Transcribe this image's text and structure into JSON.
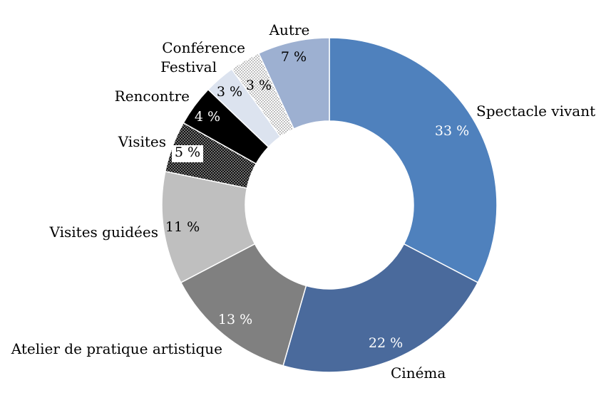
{
  "chart_data": {
    "type": "pie",
    "variant": "donut",
    "legend": "none",
    "unit_suffix": " %",
    "slices": [
      {
        "label": "Spectacle vivant",
        "value": 33,
        "color": "#4F81BD",
        "value_color": "#ffffff"
      },
      {
        "label": "Cinéma",
        "value": 22,
        "color": "#4A6A9C",
        "value_color": "#ffffff"
      },
      {
        "label": "Atelier de pratique artistique",
        "value": 13,
        "color": "#808080",
        "value_color": "#ffffff"
      },
      {
        "label": "Visites guidées",
        "value": 11,
        "color": "#BFBFBF",
        "value_color": "#000000"
      },
      {
        "label": "Visites",
        "value": 5,
        "color": "#111111",
        "pattern": "dots-dark",
        "value_color": "#000000",
        "value_box": true
      },
      {
        "label": "Rencontre",
        "value": 4,
        "color": "#000000",
        "value_color": "#ffffff"
      },
      {
        "label": "Festival",
        "value": 3,
        "color": "#DCE3EF",
        "value_color": "#000000"
      },
      {
        "label": "Conférence",
        "value": 3,
        "color": "#ffffff",
        "pattern": "dots-light",
        "value_color": "#000000"
      },
      {
        "label": "Autre",
        "value": 7,
        "color": "#9DB0D1",
        "value_color": "#000000"
      }
    ]
  }
}
